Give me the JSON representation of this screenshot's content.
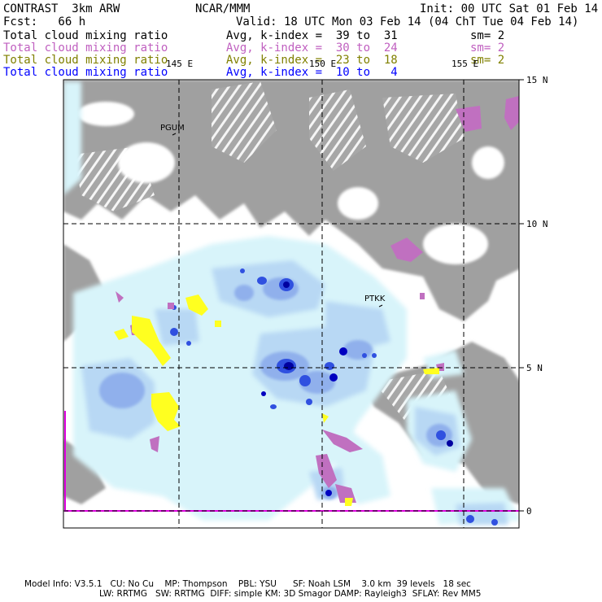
{
  "header": {
    "left_title": "CONTRAST  3km ARW",
    "center_title": "NCAR/MMM",
    "init": "Init: 00 UTC Sat 01 Feb 14",
    "fcst": "Fcst:   66 h",
    "valid": "Valid: 18 UTC Mon 03 Feb 14 (04 ChT Tue 04 Feb 14)"
  },
  "fields": [
    {
      "name": "Total cloud mixing ratio",
      "avg": "Avg, k-index =  39 to  31",
      "sm": "sm= 2",
      "color": "#000000"
    },
    {
      "name": "Total cloud mixing ratio",
      "avg": "Avg, k-index =  30 to  24",
      "sm": "sm= 2",
      "color": "#c060c0"
    },
    {
      "name": "Total cloud mixing ratio",
      "avg": "Avg, k-index =  23 to  18",
      "sm": "sm= 2",
      "color": "#808000"
    },
    {
      "name": "Total cloud mixing ratio",
      "avg": "Avg, k-index =  10 to   4",
      "sm": "",
      "color": "#0000ff"
    }
  ],
  "map": {
    "lon_labels": [
      "145 E",
      "150 E",
      "155 E"
    ],
    "lat_labels": [
      "15 N",
      "10 N",
      "5 N",
      "0"
    ],
    "stations": [
      "PGUM",
      "PTKK"
    ],
    "colors": {
      "grey_cloud": "#a0a0a0",
      "light_cyan": "#d8f4fa",
      "light_blue": "#b8d8f4",
      "mid_blue": "#90b0ec",
      "deep_blue": "#3050e0",
      "dark_blue": "#0000a0",
      "magenta": "#c070c0",
      "yellow": "#ffff20"
    }
  },
  "footer": {
    "line1": "Model Info: V3.5.1   CU: No Cu    MP: Thompson    PBL: YSU      SF: Noah LSM    3.0 km  39 levels   18 sec",
    "line2": "LW: RRTMG   SW: RRTMG  DIFF: simple KM: 3D Smagor DAMP: Rayleigh3  SFLAY: Rev MM5"
  }
}
